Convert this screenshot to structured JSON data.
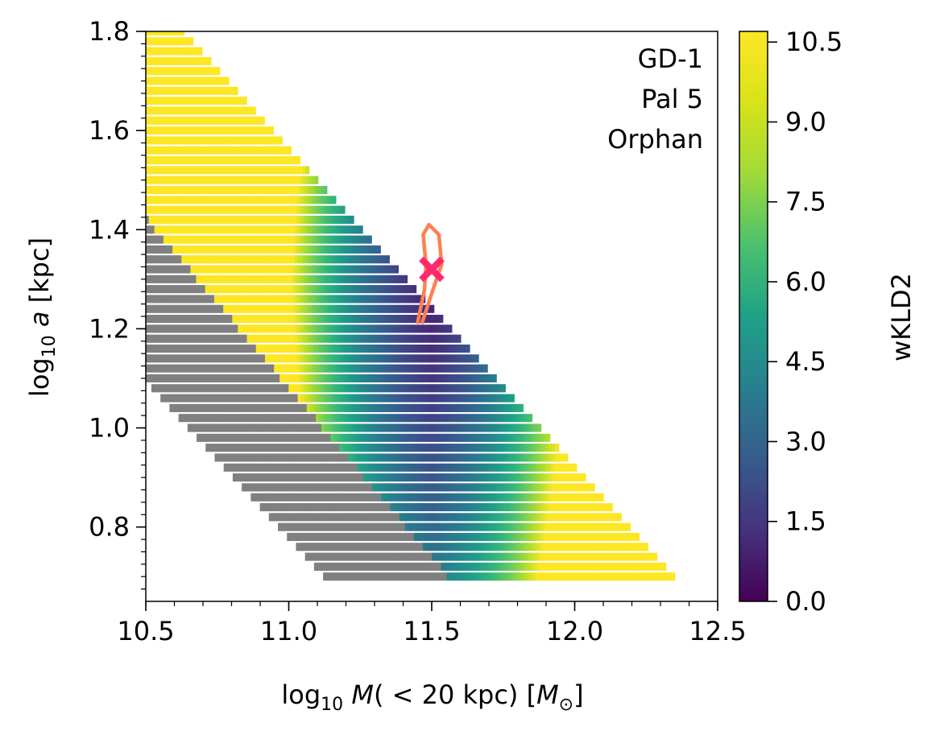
{
  "chart_data": {
    "type": "heatmap",
    "title": "",
    "x": {
      "label_prefix": "log",
      "label_sub": "10",
      "label_italic": "M",
      "label_mid": "( < 20 kpc) [",
      "label_unit_italic": "M",
      "label_unit_sub": "⊙",
      "label_end": "]",
      "lim": [
        10.5,
        12.5
      ],
      "ticks": [
        10.5,
        11.0,
        11.5,
        12.0,
        12.5
      ],
      "tick_labels": [
        "10.5",
        "11.0",
        "11.5",
        "12.0",
        "12.5"
      ],
      "minor_step": 0.1
    },
    "y": {
      "label_prefix": "log",
      "label_sub": "10",
      "label_italic": "a",
      "label_end": " [kpc]",
      "lim": [
        0.65,
        1.8
      ],
      "ticks": [
        0.8,
        1.0,
        1.2,
        1.4,
        1.6,
        1.8
      ],
      "tick_labels": [
        "0.8",
        "1.0",
        "1.2",
        "1.4",
        "1.6",
        "1.8"
      ],
      "minor_step": 0.025
    },
    "grid": {
      "row_start": 0.7,
      "row_step": 0.02,
      "row_count": 56,
      "left_edge_formula": "xmin = 11.12 - 1.58*(loga - 0.70)",
      "right_edge_formula": "xmax = 12.35 - 1.56*(loga - 0.70)",
      "grey_cut_formula": "grey where x < 11.55 - 1.46*(loga - 0.70)"
    },
    "colorbar": {
      "label": "wKLD2",
      "colormap": "viridis",
      "lim": [
        0.0,
        10.7
      ],
      "ticks": [
        0.0,
        1.5,
        3.0,
        4.5,
        6.0,
        7.5,
        9.0,
        10.5
      ],
      "tick_labels": [
        "0.0",
        "1.5",
        "3.0",
        "4.5",
        "6.0",
        "7.5",
        "9.0",
        "10.5"
      ],
      "excluded_color": "#808080"
    },
    "legend_text": [
      "GD-1",
      "Pal 5",
      "Orphan"
    ],
    "legend_position": "top-right",
    "best_fit": {
      "x": 11.5,
      "y": 1.32,
      "marker": "x",
      "color": "#ff2a6d"
    },
    "contour": {
      "color": "#ff7f50",
      "points": [
        [
          11.45,
          1.21
        ],
        [
          11.475,
          1.28
        ],
        [
          11.48,
          1.33
        ],
        [
          11.47,
          1.39
        ],
        [
          11.49,
          1.41
        ],
        [
          11.525,
          1.39
        ],
        [
          11.535,
          1.33
        ],
        [
          11.505,
          1.28
        ],
        [
          11.465,
          1.21
        ]
      ]
    }
  }
}
